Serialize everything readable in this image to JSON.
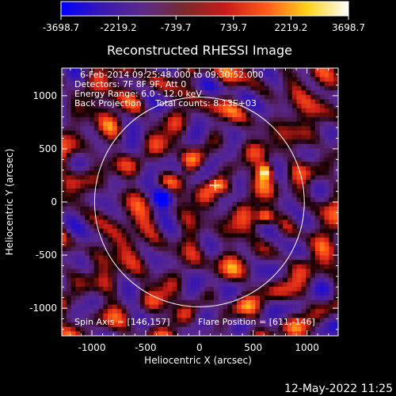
{
  "title": "Reconstructed RHESSI Image",
  "colorbar": {
    "ticks": [
      "-3698.7",
      "-2219.2",
      "-739.7",
      "739.7",
      "2219.2",
      "3698.7"
    ],
    "range": [
      -3698.7,
      3698.7
    ],
    "colors": [
      "#0000ff",
      "#3a18b0",
      "#5a2a8a",
      "#7a2a2a",
      "#c81a1a",
      "#ff5a1a",
      "#ffd21a",
      "#ffffff"
    ]
  },
  "info_lines": [
    "6-Feb-2014 09:25:48.000 to 09:30:52.000",
    "Detectors: 7F 8F 9F, Att 0",
    "Energy Range: 6.0 - 12.0 keV",
    "Back Projection     Total counts: 8.13E+03"
  ],
  "xaxis": {
    "label": "Heliocentric X (arcsec)",
    "ticks": [
      "-1000",
      "-500",
      "0",
      "500",
      "1000"
    ],
    "range": [
      -1280,
      1290
    ]
  },
  "yaxis": {
    "label": "Heliocentric Y (arcsec)",
    "ticks": [
      "1000",
      "500",
      "0",
      "-500",
      "-1000"
    ],
    "range": [
      -1260,
      1260
    ]
  },
  "solar_limb_radius_arcsec": 975,
  "flare_marker": {
    "x": 146,
    "y": 157
  },
  "bright_sources": [
    {
      "x": 620,
      "y": 290,
      "strength": 1.0
    },
    {
      "x": 610,
      "y": -140,
      "strength": 0.95
    },
    {
      "x": 180,
      "y": 160,
      "strength": 0.7
    },
    {
      "x": 270,
      "y": 120,
      "strength": 0.55
    }
  ],
  "dark_sources": [
    {
      "x": -330,
      "y": 50,
      "strength": 1.0
    },
    {
      "x": -200,
      "y": 300,
      "strength": 0.5
    }
  ],
  "footer": {
    "spin_axis": "Spin Axis = [146,157]",
    "flare_position": "Flare Position = [611,-146]"
  },
  "timestamp": "12-May-2022 11:25"
}
